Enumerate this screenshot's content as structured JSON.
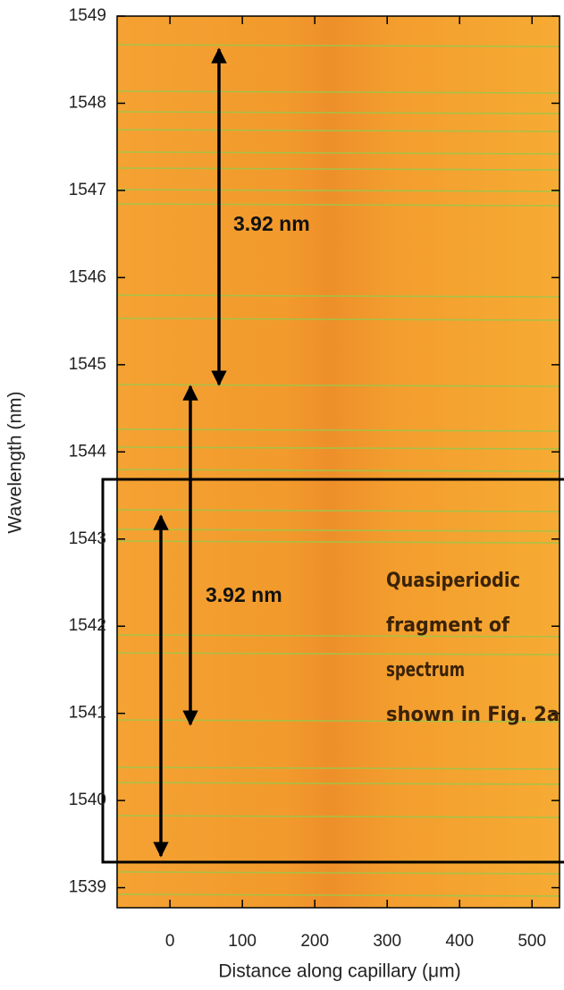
{
  "chart_data": {
    "type": "heatmap",
    "x_label": "Distance along capillary (μm)",
    "y_label": "Wavelength (nm)",
    "xlim": [
      -73,
      538
    ],
    "xticks": [
      0,
      100,
      200,
      300,
      400,
      500
    ],
    "ylim": [
      1538.77,
      1549
    ],
    "yticks": [
      1539,
      1540,
      1541,
      1542,
      1543,
      1544,
      1545,
      1546,
      1547,
      1548,
      1549
    ],
    "annotations": [
      "3.92 nm",
      "3.92 nm"
    ],
    "box_label": [
      "Quasiperiodic",
      "fragment  of",
      "spectrum",
      "shown in Fig.  2a"
    ]
  }
}
